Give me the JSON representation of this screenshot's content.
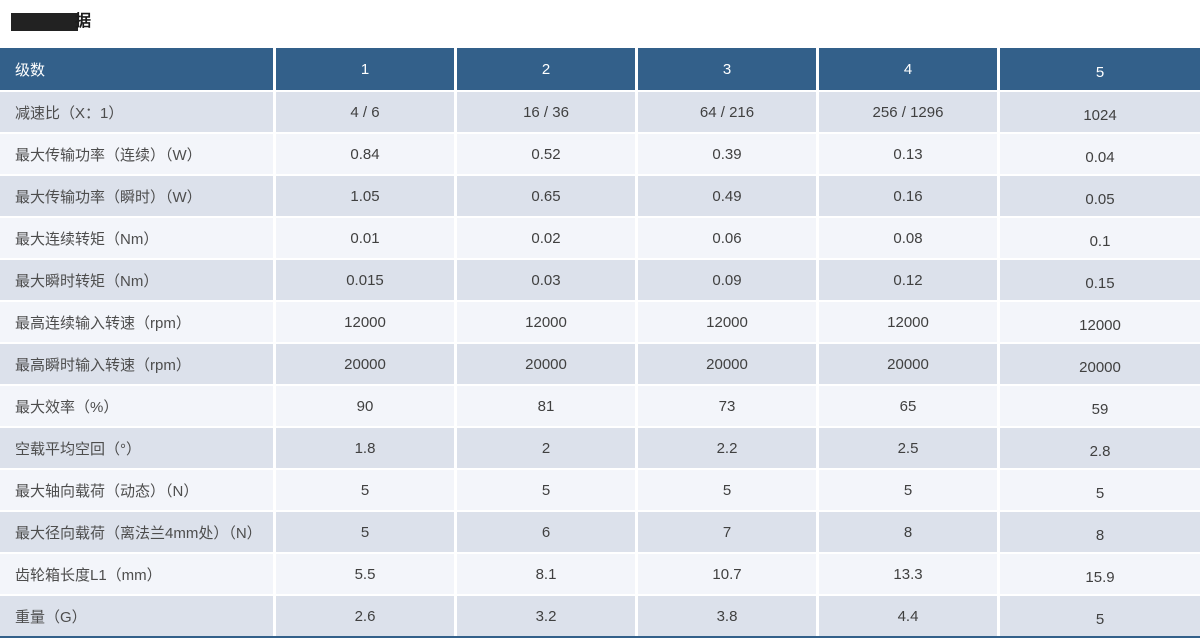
{
  "page": {
    "title_visible": "据"
  },
  "table": {
    "corner_label": "级数",
    "columns": [
      "1",
      "2",
      "3",
      "4",
      "5"
    ],
    "rows": [
      {
        "label": "减速比（X：1）",
        "values": [
          "4 / 6",
          "16 / 36",
          "64 / 216",
          "256 / 1296",
          "1024"
        ]
      },
      {
        "label": "最大传输功率（连续）（W）",
        "values": [
          "0.84",
          "0.52",
          "0.39",
          "0.13",
          "0.04"
        ]
      },
      {
        "label": "最大传输功率（瞬时）（W）",
        "values": [
          "1.05",
          "0.65",
          "0.49",
          "0.16",
          "0.05"
        ]
      },
      {
        "label": "最大连续转矩（Nm）",
        "values": [
          "0.01",
          "0.02",
          "0.06",
          "0.08",
          "0.1"
        ]
      },
      {
        "label": "最大瞬时转矩（Nm）",
        "values": [
          "0.015",
          "0.03",
          "0.09",
          "0.12",
          "0.15"
        ]
      },
      {
        "label": "最高连续输入转速（rpm）",
        "values": [
          "12000",
          "12000",
          "12000",
          "12000",
          "12000"
        ]
      },
      {
        "label": "最高瞬时输入转速（rpm）",
        "values": [
          "20000",
          "20000",
          "20000",
          "20000",
          "20000"
        ]
      },
      {
        "label": "最大效率（%）",
        "values": [
          "90",
          "81",
          "73",
          "65",
          "59"
        ]
      },
      {
        "label": "空载平均空回（°）",
        "values": [
          "1.8",
          "2",
          "2.2",
          "2.5",
          "2.8"
        ]
      },
      {
        "label": "最大轴向载荷（动态）（N）",
        "values": [
          "5",
          "5",
          "5",
          "5",
          "5"
        ]
      },
      {
        "label": "最大径向载荷（离法兰4mm处）（N）",
        "values": [
          "5",
          "6",
          "7",
          "8",
          "8"
        ]
      },
      {
        "label": "齿轮箱长度L1（mm）",
        "values": [
          "5.5",
          "8.1",
          "10.7",
          "13.3",
          "15.9"
        ]
      },
      {
        "label": "重量（G）",
        "values": [
          "2.6",
          "3.2",
          "3.8",
          "4.4",
          "5"
        ]
      }
    ]
  },
  "colors": {
    "header_bg": "#33608a",
    "row_dark": "#dce1eb",
    "row_light": "#f3f5fa",
    "separator": "#ffffff",
    "header_text": "#ffffff",
    "label_text": "#4d4d4d",
    "value_text": "#404040",
    "title_text": "#1c1c1c"
  }
}
